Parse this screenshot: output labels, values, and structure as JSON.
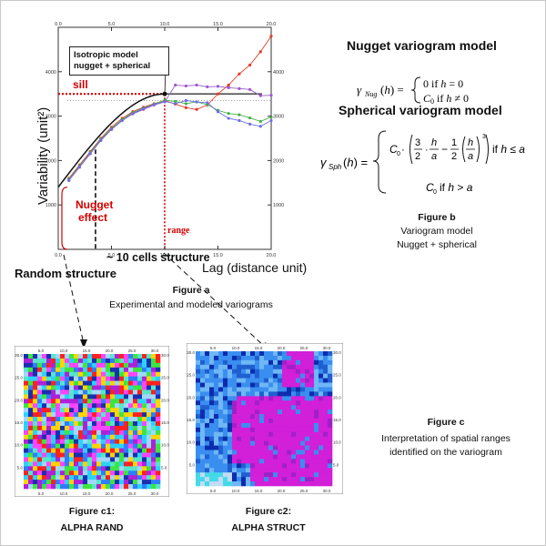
{
  "chart": {
    "ylabel": "Variability (unit²)",
    "xlabel": "Lag (distance unit)",
    "model_box": [
      "Isotropic model",
      "nugget + spherical"
    ],
    "sill_label": "sill",
    "nugget_label": [
      "Nugget",
      "effect"
    ],
    "range_label": "range",
    "x_ticks": [
      "0.0",
      "5.0",
      "10.0",
      "15.0",
      "20.0"
    ],
    "y_ticks": [
      "1000",
      "2000",
      "3000",
      "4000"
    ],
    "colors": {
      "sill": "#d40000",
      "model": "#111111"
    }
  },
  "chart_data": {
    "type": "line",
    "xlim": [
      0,
      20
    ],
    "ylim": [
      0,
      5000
    ],
    "x_ticks": [
      0,
      5,
      10,
      15,
      20
    ],
    "y_ticks": [
      1000,
      2000,
      3000,
      4000
    ],
    "sill": 3500,
    "nugget": 1400,
    "range": 10,
    "series": [
      {
        "color": "#e23d28",
        "x": [
          1,
          2,
          3,
          4,
          5,
          6,
          7,
          8,
          9,
          10,
          11,
          12,
          13,
          14,
          15,
          16,
          17,
          18,
          19,
          20
        ],
        "y": [
          1600,
          1900,
          2200,
          2500,
          2750,
          2950,
          3100,
          3200,
          3280,
          3350,
          3270,
          3190,
          3150,
          3250,
          3500,
          3700,
          3950,
          4150,
          4450,
          4800
        ]
      },
      {
        "color": "#9b59c9",
        "x": [
          1,
          2,
          3,
          4,
          5,
          6,
          7,
          8,
          9,
          10,
          11,
          12,
          13,
          14,
          15,
          16,
          17,
          18,
          19,
          20
        ],
        "y": [
          1550,
          1850,
          2150,
          2450,
          2700,
          2900,
          3050,
          3150,
          3250,
          3320,
          3700,
          3680,
          3700,
          3660,
          3670,
          3640,
          3620,
          3600,
          3460,
          3470
        ]
      },
      {
        "color": "#45b04a",
        "x": [
          1,
          2,
          3,
          4,
          5,
          6,
          7,
          8,
          9,
          10,
          11,
          12,
          13,
          14,
          15,
          16,
          17,
          18,
          19,
          20
        ],
        "y": [
          1580,
          1880,
          2180,
          2480,
          2720,
          2920,
          3080,
          3180,
          3270,
          3360,
          3330,
          3280,
          3320,
          3260,
          3130,
          3060,
          3030,
          2960,
          2880,
          2980
        ]
      },
      {
        "color": "#6f6fe0",
        "x": [
          1,
          2,
          3,
          4,
          5,
          6,
          7,
          8,
          9,
          10,
          11,
          12,
          13,
          14,
          15,
          16,
          17,
          18,
          19,
          20
        ],
        "y": [
          1560,
          1860,
          2160,
          2460,
          2700,
          2900,
          3060,
          3170,
          3260,
          3330,
          3280,
          3350,
          3320,
          3300,
          3100,
          2950,
          2900,
          2820,
          2770,
          2900
        ]
      }
    ]
  },
  "labels": {
    "cells_structure": "~ 10 cells structure",
    "random_structure": "Random structure",
    "fig_a_title": "Figure a",
    "fig_a_caption": "Experimental and modeled  variograms",
    "nugget_model_title": "Nugget variogram model",
    "spherical_model_title": "Spherical variogram model",
    "fig_b_title": "Figure b",
    "fig_b_line1": "Variogram model",
    "fig_b_line2": "Nugget + spherical",
    "fig_c_title": "Figure c",
    "fig_c_text": "Interpretation of spatial ranges identified on the variogram",
    "fig_c1_title": "Figure c1:",
    "fig_c1_name": "ALPHA RAND",
    "fig_c2_title": "Figure c2:",
    "fig_c2_name": "ALPHA STRUCT"
  },
  "map_ticks": [
    "5.0",
    "10.0",
    "15.0",
    "20.0",
    "25.0",
    "30.0"
  ],
  "maps": {
    "rand_palette": [
      "#ff2020",
      "#ffd400",
      "#3ce63c",
      "#2ad2ff",
      "#2f7dff",
      "#1830b0",
      "#ff44ff",
      "#b020d8",
      "#56e6c8",
      "#a2d7ff"
    ],
    "struct_palette": [
      "#3a8ef0",
      "#6fb7f5",
      "#1f5fd0",
      "#d21fd8",
      "#a020c8",
      "#0c2cae",
      "#45d9e8",
      "#c2dcf5"
    ]
  }
}
